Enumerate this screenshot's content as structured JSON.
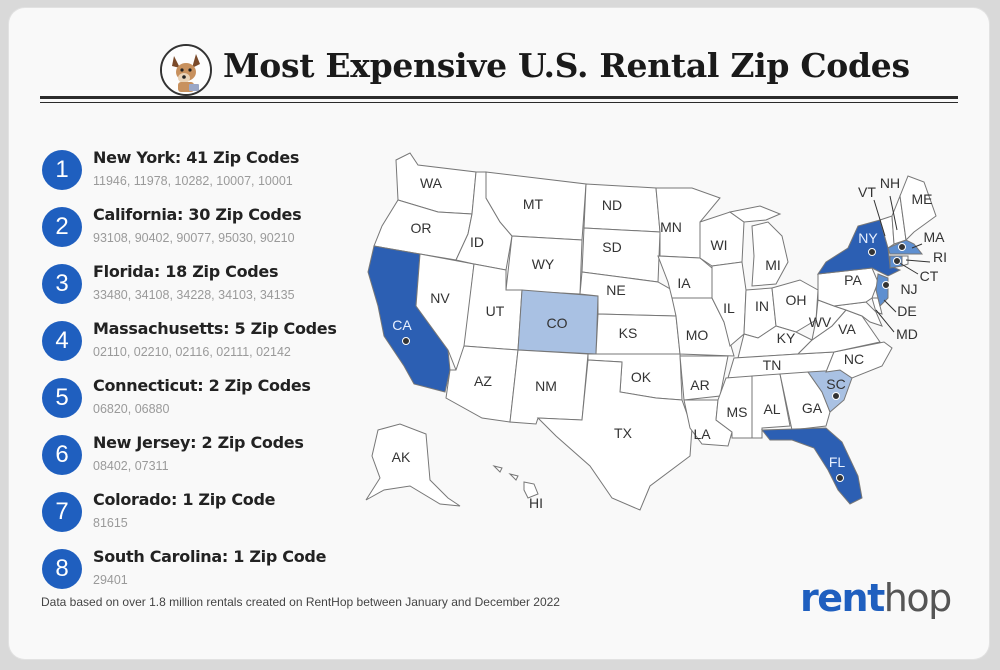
{
  "title": "Most Expensive U.S. Rental Zip Codes",
  "rankings": [
    {
      "rank": "1",
      "state": "New York: 41 Zip Codes",
      "zips": "11946, 11978, 10282, 10007, 10001"
    },
    {
      "rank": "2",
      "state": "California: 30 Zip Codes",
      "zips": "93108, 90402, 90077, 95030, 90210"
    },
    {
      "rank": "3",
      "state": "Florida: 18 Zip Codes",
      "zips": "33480, 34108, 34228, 34103, 34135"
    },
    {
      "rank": "4",
      "state": "Massachusetts: 5 Zip Codes",
      "zips": "02110, 02210, 02116, 02111, 02142"
    },
    {
      "rank": "5",
      "state": "Connecticut: 2 Zip Codes",
      "zips": "06820, 06880"
    },
    {
      "rank": "6",
      "state": "New Jersey: 2 Zip Codes",
      "zips": "08402, 07311"
    },
    {
      "rank": "7",
      "state": "Colorado: 1 Zip Code",
      "zips": "81615"
    },
    {
      "rank": "8",
      "state": "South Carolina: 1 Zip Code",
      "zips": "29401"
    }
  ],
  "footnote": "Data based on over 1.8 million rentals created on RentHop between January and December 2022",
  "brand": {
    "part1": "rent",
    "part2": "hop"
  },
  "colors": {
    "dark": "#2c5fb3",
    "medium": "#5e8fd0",
    "light": "#a9c1e3",
    "badge": "#1f5fbf"
  },
  "map_labels": {
    "WA": "WA",
    "OR": "OR",
    "CA": "CA",
    "NV": "NV",
    "ID": "ID",
    "MT": "MT",
    "WY": "WY",
    "UT": "UT",
    "AZ": "AZ",
    "CO": "CO",
    "NM": "NM",
    "ND": "ND",
    "SD": "SD",
    "NE": "NE",
    "KS": "KS",
    "OK": "OK",
    "TX": "TX",
    "MN": "MN",
    "IA": "IA",
    "MO": "MO",
    "AR": "AR",
    "LA": "LA",
    "WI": "WI",
    "IL": "IL",
    "MI": "MI",
    "IN": "IN",
    "OH": "OH",
    "KY": "KY",
    "TN": "TN",
    "MS": "MS",
    "AL": "AL",
    "GA": "GA",
    "FL": "FL",
    "SC": "SC",
    "NC": "NC",
    "VA": "VA",
    "WV": "WV",
    "PA": "PA",
    "NY": "NY",
    "VT": "VT",
    "NH": "NH",
    "ME": "ME",
    "MA": "MA",
    "RI": "RI",
    "CT": "CT",
    "NJ": "NJ",
    "DE": "DE",
    "MD": "MD",
    "AK": "AK",
    "HI": "HI"
  }
}
